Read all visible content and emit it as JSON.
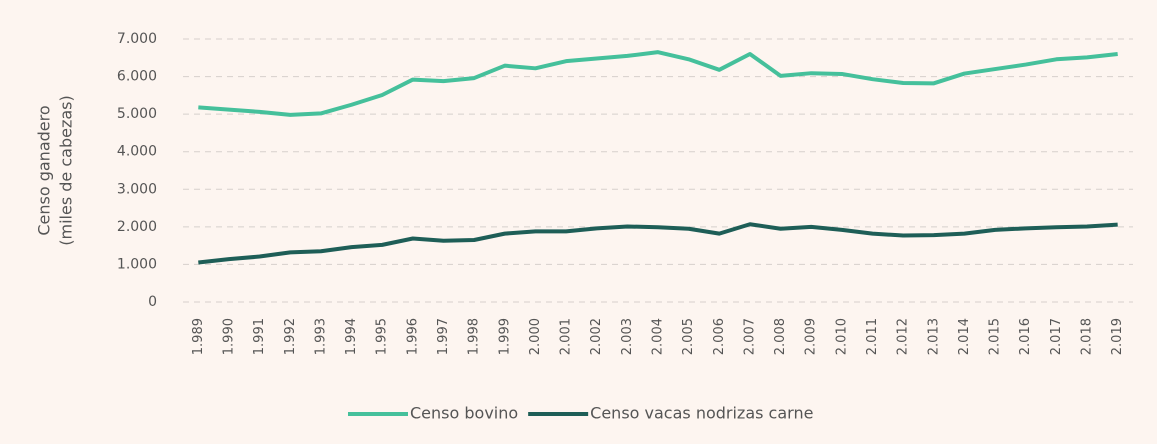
{
  "chart_data": {
    "type": "line",
    "ylabel": [
      "Censo ganadero",
      "(miles de cabezas)"
    ],
    "categories": [
      "1.989",
      "1.990",
      "1.991",
      "1.992",
      "1.993",
      "1.994",
      "1.995",
      "1.996",
      "1.997",
      "1.998",
      "1.999",
      "2.000",
      "2.001",
      "2.002",
      "2.003",
      "2.004",
      "2.005",
      "2.006",
      "2.007",
      "2.008",
      "2.009",
      "2.010",
      "2.011",
      "2.012",
      "2.013",
      "2.014",
      "2.015",
      "2.016",
      "2.017",
      "2.018",
      "2.019"
    ],
    "series": [
      {
        "name": "Censo bovino",
        "color": "#45c09b",
        "values": [
          5180,
          5120,
          5060,
          4980,
          5020,
          5250,
          5510,
          5920,
          5880,
          5960,
          6290,
          6220,
          6410,
          6480,
          6550,
          6650,
          6460,
          6180,
          6600,
          6020,
          6090,
          6070,
          5930,
          5830,
          5820,
          6080,
          6200,
          6320,
          6460,
          6510,
          6600
        ]
      },
      {
        "name": "Censo vacas nodrizas carne",
        "color": "#1e5e57",
        "values": [
          1050,
          1140,
          1210,
          1320,
          1350,
          1460,
          1520,
          1690,
          1630,
          1650,
          1820,
          1880,
          1880,
          1960,
          2010,
          1990,
          1950,
          1820,
          2070,
          1950,
          2000,
          1920,
          1820,
          1770,
          1780,
          1820,
          1920,
          1960,
          1990,
          2010,
          2060
        ]
      }
    ],
    "ylim": [
      0,
      7000
    ],
    "yticks": [
      {
        "value": 0,
        "label": "0"
      },
      {
        "value": 1000,
        "label": "1.000"
      },
      {
        "value": 2000,
        "label": "2.000"
      },
      {
        "value": 3000,
        "label": "3.000"
      },
      {
        "value": 4000,
        "label": "4.000"
      },
      {
        "value": 5000,
        "label": "5.000"
      },
      {
        "value": 6000,
        "label": "6.000"
      },
      {
        "value": 7000,
        "label": "7.000"
      }
    ],
    "grid": true,
    "legend": "bottom"
  }
}
